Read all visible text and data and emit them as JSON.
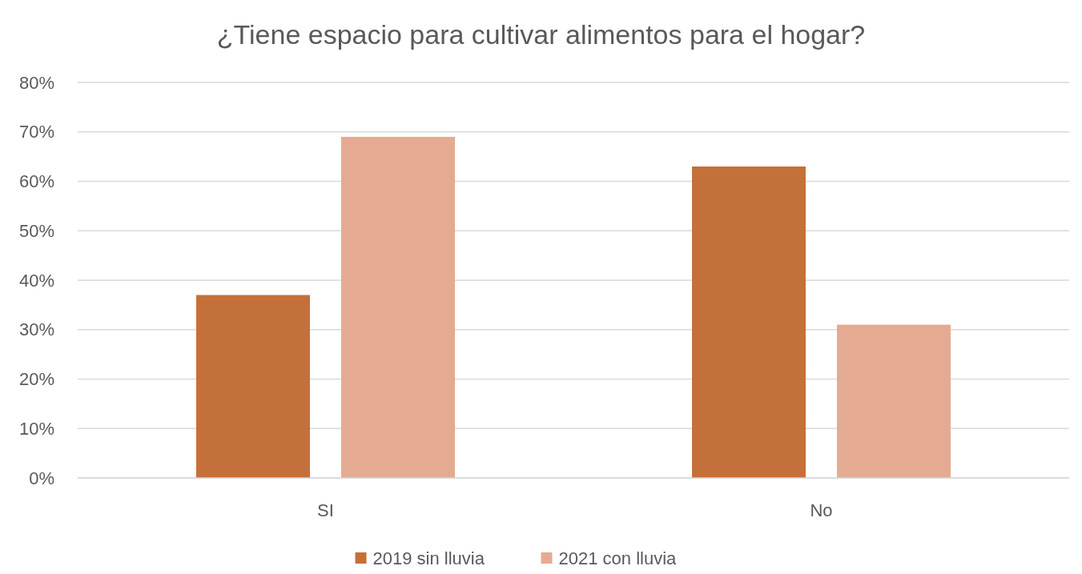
{
  "chart_data": {
    "type": "bar",
    "title": "¿Tiene espacio para cultivar alimentos para el hogar?",
    "categories": [
      "SI",
      "No"
    ],
    "series": [
      {
        "name": "2019 sin lluvia",
        "color": "#c4703b",
        "values": [
          37,
          63
        ]
      },
      {
        "name": "2021 con lluvia",
        "color": "#e5aa92",
        "values": [
          69,
          31
        ]
      }
    ],
    "ylim": [
      0,
      80
    ],
    "yticks": [
      {
        "value": 0,
        "label": "0%"
      },
      {
        "value": 10,
        "label": "10%"
      },
      {
        "value": 20,
        "label": "20%"
      },
      {
        "value": 30,
        "label": "30%"
      },
      {
        "value": 40,
        "label": "40%"
      },
      {
        "value": 50,
        "label": "50%"
      },
      {
        "value": 60,
        "label": "60%"
      },
      {
        "value": 70,
        "label": "70%"
      },
      {
        "value": 80,
        "label": "80%"
      }
    ],
    "grid": "y",
    "legend": "bottom"
  }
}
